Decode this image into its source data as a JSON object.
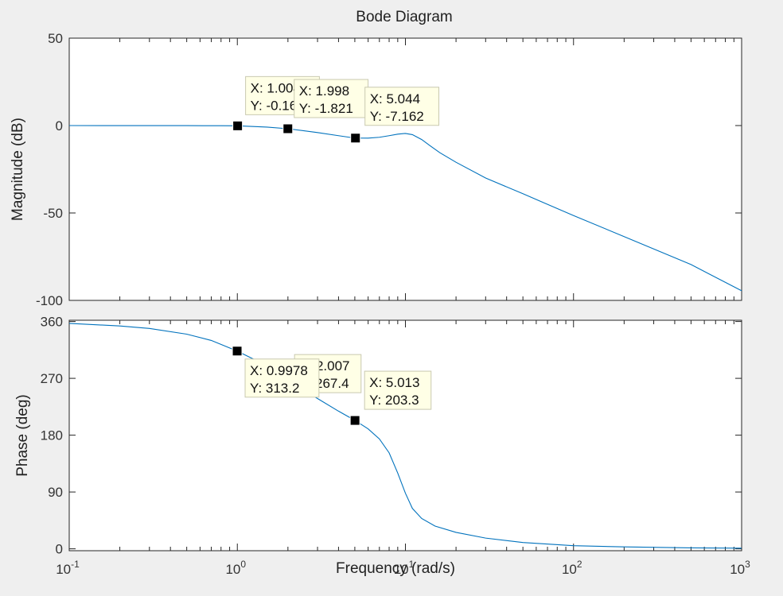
{
  "window": {
    "background": "#efefef"
  },
  "chart_data": {
    "type": "line",
    "title": "Bode Diagram",
    "xlabel": "Frequency  (rad/s)",
    "x_scale": "log",
    "xlim": [
      0.1,
      1000
    ],
    "x_ticks": [
      {
        "value": 0.1,
        "base": "10",
        "exp": "-1"
      },
      {
        "value": 1,
        "base": "10",
        "exp": "0"
      },
      {
        "value": 10,
        "base": "10",
        "exp": "1"
      },
      {
        "value": 100,
        "base": "10",
        "exp": "2"
      },
      {
        "value": 1000,
        "base": "10",
        "exp": "3"
      }
    ],
    "line_color": "#0072bd",
    "marker_color": "#000000",
    "subplots": [
      {
        "ylabel": "Magnitude (dB)",
        "ylim": [
          -100,
          50
        ],
        "yticks": [
          -100,
          -50,
          0,
          50
        ],
        "ytick_labels": [
          "-100",
          "-50",
          "0",
          "50"
        ],
        "series": [
          {
            "x": [
              0.1,
              0.2,
              0.5,
              0.8,
              1.0,
              1.5,
              2.0,
              3.0,
              4.0,
              5.0,
              6.0,
              7.0,
              8.0,
              9.0,
              10.0,
              11.0,
              12.5,
              14.0,
              16.0,
              20.0,
              30.0,
              50.0,
              100.0,
              200.0,
              500.0,
              1000.0
            ],
            "y": [
              0.0,
              -0.01,
              -0.04,
              -0.1,
              -0.163,
              -0.9,
              -1.821,
              -4.0,
              -5.8,
              -7.162,
              -7.2,
              -6.7,
              -5.8,
              -4.9,
              -4.5,
              -5.2,
              -8.0,
              -11.5,
              -15.5,
              -21.0,
              -30.0,
              -39.0,
              -51.5,
              -63.5,
              -79.5,
              -94.5
            ]
          }
        ],
        "datatips": [
          {
            "x": 1.004,
            "y": -0.163,
            "x_label": "X: 1.004",
            "y_label": "Y: -0.163"
          },
          {
            "x": 1.998,
            "y": -1.821,
            "x_label": "X: 1.998",
            "y_label": "Y: -1.821"
          },
          {
            "x": 5.044,
            "y": -7.162,
            "x_label": "X: 5.044",
            "y_label": "Y: -7.162"
          }
        ]
      },
      {
        "ylabel": "Phase (deg)",
        "ylim": [
          -3,
          362
        ],
        "yticks": [
          0,
          90,
          180,
          270,
          360
        ],
        "ytick_labels": [
          "0",
          "90",
          "180",
          "270",
          "360"
        ],
        "series": [
          {
            "x": [
              0.1,
              0.2,
              0.3,
              0.5,
              0.7,
              0.9978,
              1.5,
              2.007,
              3.0,
              4.0,
              5.013,
              6.0,
              7.0,
              8.0,
              9.0,
              10.0,
              11.0,
              12.5,
              15.0,
              20.0,
              30.0,
              50.0,
              100.0,
              200.0,
              500.0,
              1000.0
            ],
            "y": [
              357,
              353,
              349,
              340,
              330,
              313.2,
              290,
              267.4,
              238,
              218,
              203.3,
              190,
              174,
              152,
              120,
              88,
              64,
              48,
              36,
              26,
              17,
              10,
              5,
              3,
              1.5,
              1
            ]
          }
        ],
        "datatips": [
          {
            "x": 2.007,
            "y": 267.4,
            "x_label": "X: 2.007",
            "y_label": "Y: 267.4"
          },
          {
            "x": 0.9978,
            "y": 313.2,
            "x_label": "X: 0.9978",
            "y_label": "Y: 313.2"
          },
          {
            "x": 5.013,
            "y": 203.3,
            "x_label": "X: 5.013",
            "y_label": "Y: 203.3"
          }
        ]
      }
    ]
  }
}
